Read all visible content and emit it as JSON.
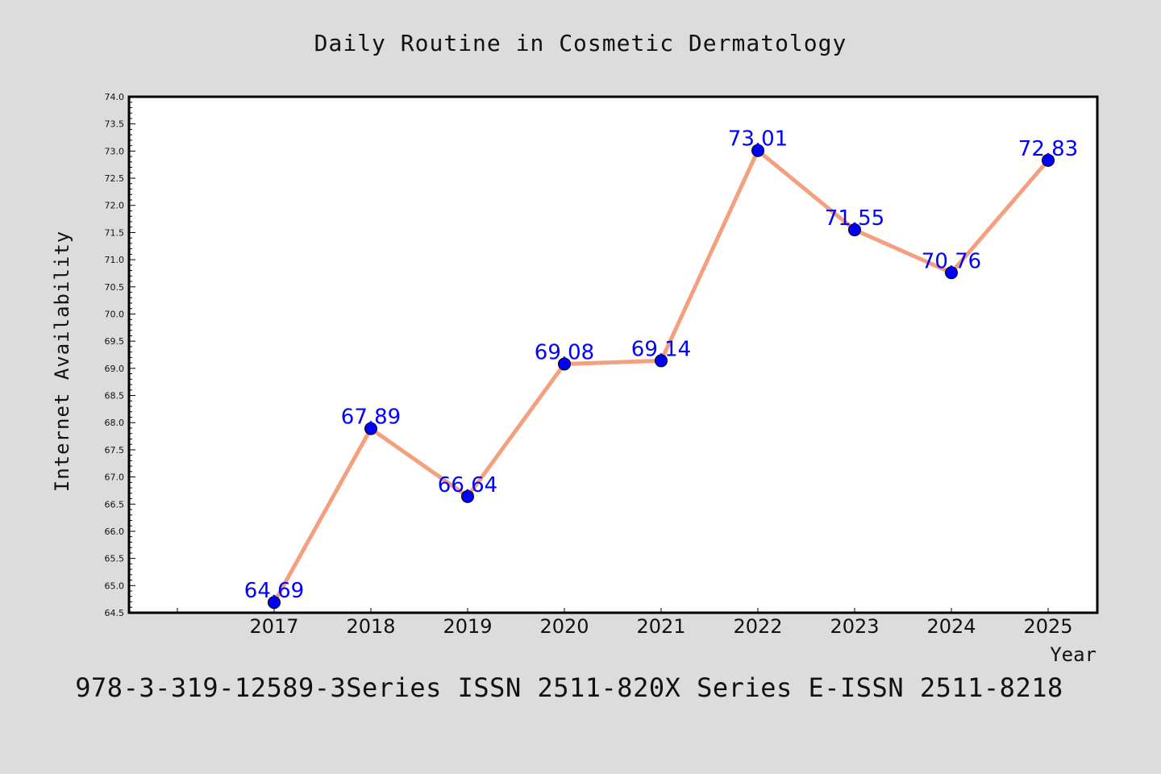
{
  "chart_data": {
    "type": "line",
    "title": "Daily Routine in Cosmetic Dermatology",
    "xlabel": "Year",
    "ylabel": "Internet Availability",
    "categories": [
      "2017",
      "2018",
      "2019",
      "2020",
      "2021",
      "2022",
      "2023",
      "2024",
      "2025"
    ],
    "values": [
      64.69,
      67.89,
      66.64,
      69.08,
      69.14,
      73.01,
      71.55,
      70.76,
      72.83
    ],
    "data_labels": [
      "64.69",
      "67.89",
      "66.64",
      "69.08",
      "69.14",
      "73.01",
      "71.55",
      "70.76",
      "72.83"
    ],
    "ylim": [
      64.5,
      74.0
    ],
    "yticks": [
      "64.5",
      "65.0",
      "65.5",
      "66.0",
      "66.5",
      "67.0",
      "67.5",
      "68.0",
      "68.5",
      "69.0",
      "69.5",
      "70.0",
      "70.5",
      "71.0",
      "71.5",
      "72.0",
      "72.5",
      "73.0",
      "73.5",
      "74.0"
    ],
    "grid": false,
    "legend": "none",
    "colors": {
      "line": "#f4a07f",
      "marker": "#0000ff",
      "data_label": "#0000ff",
      "background": "#dcdcdc",
      "plot_area": "#ffffff"
    }
  },
  "footer": "978-3-319-12589-3Series ISSN 2511-820X Series E-ISSN 2511-8218"
}
